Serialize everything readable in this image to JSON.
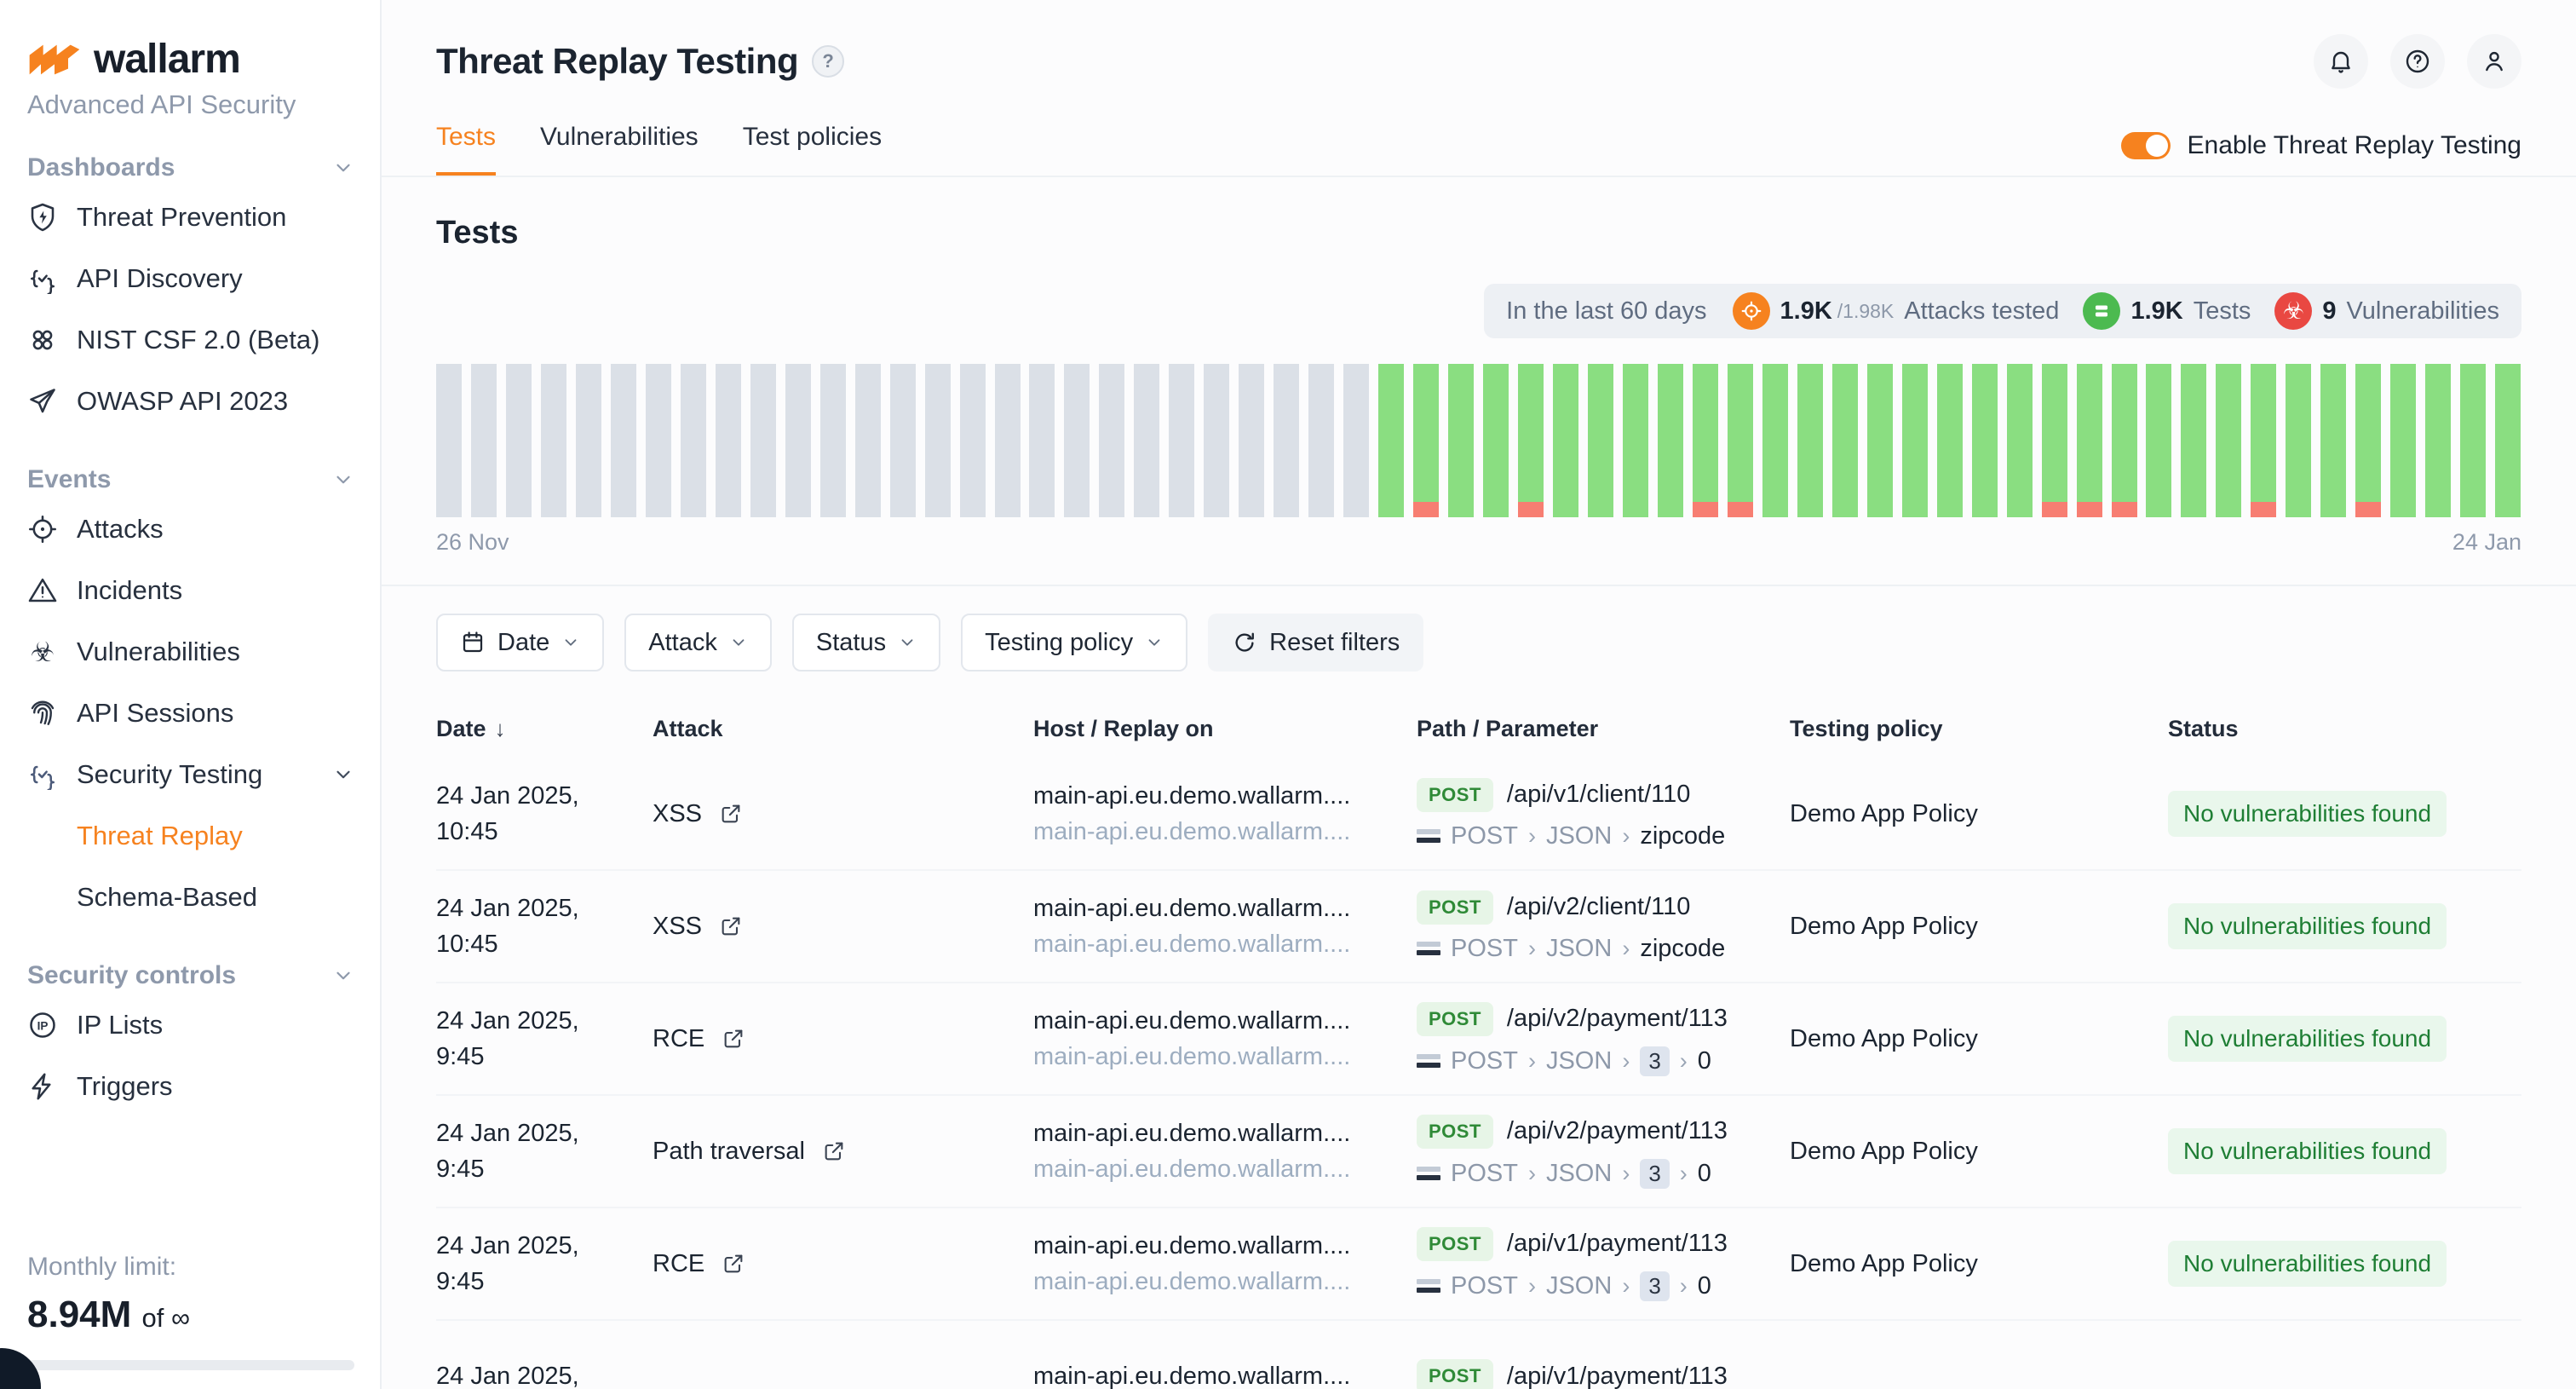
{
  "brand": {
    "name": "wallarm",
    "subtitle": "Advanced API Security",
    "accent": "#F6821F"
  },
  "sidebar": {
    "sections": [
      {
        "label": "Dashboards",
        "collapsible": true,
        "items": [
          {
            "label": "Threat Prevention",
            "icon": "shield-bolt-icon"
          },
          {
            "label": "API Discovery",
            "icon": "braces-check-icon"
          },
          {
            "label": "NIST CSF 2.0 (Beta)",
            "icon": "clover-icon"
          },
          {
            "label": "OWASP API 2023",
            "icon": "paper-plane-icon"
          }
        ]
      },
      {
        "label": "Events",
        "collapsible": true,
        "items": [
          {
            "label": "Attacks",
            "icon": "crosshair-icon"
          },
          {
            "label": "Incidents",
            "icon": "warning-triangle-icon"
          },
          {
            "label": "Vulnerabilities",
            "icon": "biohazard-icon"
          },
          {
            "label": "API Sessions",
            "icon": "fingerprint-icon"
          },
          {
            "label": "Security Testing",
            "icon": "braces-check-icon",
            "tint": true,
            "expanded": true,
            "children": [
              {
                "label": "Threat Replay",
                "active": true
              },
              {
                "label": "Schema-Based"
              }
            ]
          }
        ]
      },
      {
        "label": "Security controls",
        "collapsible": true,
        "items": [
          {
            "label": "IP Lists",
            "icon": "ip-circle-icon"
          },
          {
            "label": "Triggers",
            "icon": "lightning-icon"
          }
        ]
      }
    ],
    "monthly_limit": {
      "label": "Monthly limit:",
      "value": "8.94M",
      "suffix": "of ∞"
    }
  },
  "header": {
    "title": "Threat Replay Testing",
    "help_glyph": "?",
    "toggle_label": "Enable Threat Replay Testing",
    "toggle_on": true
  },
  "tabs": [
    {
      "label": "Tests",
      "active": true
    },
    {
      "label": "Vulnerabilities",
      "active": false
    },
    {
      "label": "Test policies",
      "active": false
    }
  ],
  "page": {
    "section_heading": "Tests"
  },
  "stats": {
    "range_label": "In the last 60 days",
    "items": [
      {
        "icon": "crosshair-stat-icon",
        "color": "#F6821F",
        "value": "1.9K",
        "total": "/1.98K",
        "label": "Attacks tested"
      },
      {
        "icon": "server-stat-icon",
        "color": "#4CBA50",
        "value": "1.9K",
        "total": "",
        "label": "Tests"
      },
      {
        "icon": "biohazard-stat-icon",
        "color": "#E94842",
        "value": "9",
        "total": "",
        "label": "Vulnerabilities"
      }
    ]
  },
  "chart_data": {
    "type": "bar",
    "description": "Threat Replay test activity per day, last 60 days",
    "start_label": "26 Nov",
    "end_label": "24 Jan",
    "total_bars": 60,
    "no_data_until_index": 27,
    "red_indices": [
      28,
      31,
      36,
      37,
      46,
      47,
      48,
      52,
      55
    ],
    "red_height_fraction": 0.1,
    "colors": {
      "no_data": "#DBE0E7",
      "tests": "#8ADE81",
      "vulnerabilities": "#F77E72"
    }
  },
  "filters": [
    {
      "label": "Date",
      "icon": "calendar-icon",
      "chevron": true,
      "style": "outline"
    },
    {
      "label": "Attack",
      "icon": "",
      "chevron": true,
      "style": "outline"
    },
    {
      "label": "Status",
      "icon": "",
      "chevron": true,
      "style": "outline"
    },
    {
      "label": "Testing policy",
      "icon": "",
      "chevron": true,
      "style": "outline"
    },
    {
      "label": "Reset filters",
      "icon": "refresh-icon",
      "chevron": false,
      "style": "filled"
    }
  ],
  "table": {
    "headers": [
      "Date",
      "Attack",
      "Host / Replay on",
      "Path / Parameter",
      "Testing policy",
      "Status"
    ],
    "sorted_column": "Date",
    "rows": [
      {
        "date": "24 Jan 2025,",
        "time": "10:45",
        "attack": "XSS",
        "host": "main-api.eu.demo.wallarm....",
        "replay": "main-api.eu.demo.wallarm....",
        "method": "POST",
        "path": "/api/v1/client/110",
        "params": [
          {
            "t": "POST",
            "s": "muted"
          },
          {
            "t": "JSON",
            "s": "muted"
          },
          {
            "t": "zipcode",
            "s": "dark"
          }
        ],
        "policy": "Demo App Policy",
        "status": "No vulnerabilities found"
      },
      {
        "date": "24 Jan 2025,",
        "time": "10:45",
        "attack": "XSS",
        "host": "main-api.eu.demo.wallarm....",
        "replay": "main-api.eu.demo.wallarm....",
        "method": "POST",
        "path": "/api/v2/client/110",
        "params": [
          {
            "t": "POST",
            "s": "muted"
          },
          {
            "t": "JSON",
            "s": "muted"
          },
          {
            "t": "zipcode",
            "s": "dark"
          }
        ],
        "policy": "Demo App Policy",
        "status": "No vulnerabilities found"
      },
      {
        "date": "24 Jan 2025,",
        "time": "9:45",
        "attack": "RCE",
        "host": "main-api.eu.demo.wallarm....",
        "replay": "main-api.eu.demo.wallarm....",
        "method": "POST",
        "path": "/api/v2/payment/113",
        "params": [
          {
            "t": "POST",
            "s": "muted"
          },
          {
            "t": "JSON",
            "s": "muted"
          },
          {
            "t": "3",
            "s": "boxed"
          },
          {
            "t": "0",
            "s": "dark"
          }
        ],
        "policy": "Demo App Policy",
        "status": "No vulnerabilities found"
      },
      {
        "date": "24 Jan 2025,",
        "time": "9:45",
        "attack": "Path traversal",
        "host": "main-api.eu.demo.wallarm....",
        "replay": "main-api.eu.demo.wallarm....",
        "method": "POST",
        "path": "/api/v2/payment/113",
        "params": [
          {
            "t": "POST",
            "s": "muted"
          },
          {
            "t": "JSON",
            "s": "muted"
          },
          {
            "t": "3",
            "s": "boxed"
          },
          {
            "t": "0",
            "s": "dark"
          }
        ],
        "policy": "Demo App Policy",
        "status": "No vulnerabilities found"
      },
      {
        "date": "24 Jan 2025,",
        "time": "9:45",
        "attack": "RCE",
        "host": "main-api.eu.demo.wallarm....",
        "replay": "main-api.eu.demo.wallarm....",
        "method": "POST",
        "path": "/api/v1/payment/113",
        "params": [
          {
            "t": "POST",
            "s": "muted"
          },
          {
            "t": "JSON",
            "s": "muted"
          },
          {
            "t": "3",
            "s": "boxed"
          },
          {
            "t": "0",
            "s": "dark"
          }
        ],
        "policy": "Demo App Policy",
        "status": "No vulnerabilities found"
      },
      {
        "date": "24 Jan 2025,",
        "time": "",
        "attack": "",
        "host": "main-api.eu.demo.wallarm....",
        "replay": "",
        "method": "POST",
        "path": "/api/v1/payment/113",
        "params": [],
        "policy": "",
        "status": ""
      }
    ]
  }
}
